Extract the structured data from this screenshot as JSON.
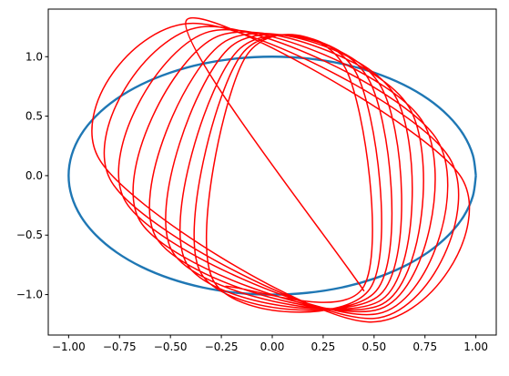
{
  "chart_data": {
    "type": "line",
    "title": "",
    "xlabel": "",
    "ylabel": "",
    "xlim": [
      -1.1,
      1.1
    ],
    "ylim": [
      -1.34,
      1.4
    ],
    "grid": false,
    "x_ticks": [
      -1.0,
      -0.75,
      -0.5,
      -0.25,
      0.0,
      0.25,
      0.5,
      0.75,
      1.0
    ],
    "x_tick_labels": [
      "−1.00",
      "−0.75",
      "−0.50",
      "−0.25",
      "0.00",
      "0.25",
      "0.50",
      "0.75",
      "1.00"
    ],
    "y_ticks": [
      -1.0,
      -0.5,
      0.0,
      0.5,
      1.0
    ],
    "y_tick_labels": [
      "−1.0",
      "−0.5",
      "0.0",
      "0.5",
      "1.0"
    ],
    "series": [
      {
        "color": "#1f77b4",
        "kind": "ellipse-band",
        "points": [
          [
            1.0,
            0.0
          ],
          [
            0.985,
            0.173
          ],
          [
            0.94,
            0.342
          ],
          [
            0.866,
            0.5
          ],
          [
            0.766,
            0.643
          ],
          [
            0.643,
            0.766
          ],
          [
            0.5,
            0.866
          ],
          [
            0.342,
            0.94
          ],
          [
            0.173,
            0.985
          ],
          [
            0.0,
            1.0
          ],
          [
            -0.173,
            0.985
          ],
          [
            -0.342,
            0.94
          ],
          [
            -0.5,
            0.866
          ],
          [
            -0.643,
            0.766
          ],
          [
            -0.766,
            0.643
          ],
          [
            -0.866,
            0.5
          ],
          [
            -0.94,
            0.342
          ],
          [
            -0.985,
            0.173
          ],
          [
            -1.0,
            0.0
          ],
          [
            -0.985,
            -0.173
          ],
          [
            -0.94,
            -0.342
          ],
          [
            -0.866,
            -0.5
          ],
          [
            -0.766,
            -0.643
          ],
          [
            -0.643,
            -0.766
          ],
          [
            -0.5,
            -0.866
          ],
          [
            -0.342,
            -0.94
          ],
          [
            -0.173,
            -0.985
          ],
          [
            0.0,
            -1.0
          ],
          [
            0.173,
            -0.985
          ],
          [
            0.342,
            -0.94
          ],
          [
            0.5,
            -0.866
          ],
          [
            0.643,
            -0.766
          ],
          [
            0.766,
            -0.643
          ],
          [
            0.866,
            -0.5
          ],
          [
            0.94,
            -0.342
          ],
          [
            0.985,
            -0.173
          ],
          [
            1.0,
            0.0
          ]
        ]
      },
      {
        "color": "#ff0000",
        "kind": "precessing-loops",
        "points": [
          [
            0.451,
            -0.971
          ],
          [
            -0.42,
            1.31
          ],
          [
            0.93,
            -0.02
          ],
          [
            0.47,
            -1.23
          ],
          [
            -0.85,
            0.14
          ],
          [
            -0.39,
            1.28
          ],
          [
            0.87,
            0.15
          ],
          [
            0.5,
            -1.2
          ],
          [
            -0.79,
            -0.05
          ],
          [
            -0.35,
            1.25
          ],
          [
            0.81,
            0.3
          ],
          [
            0.52,
            -1.16
          ],
          [
            -0.72,
            -0.22
          ],
          [
            -0.31,
            1.21
          ],
          [
            0.74,
            0.45
          ],
          [
            0.53,
            -1.12
          ],
          [
            -0.65,
            -0.38
          ],
          [
            -0.27,
            1.17
          ],
          [
            0.67,
            0.58
          ],
          [
            0.54,
            -1.08
          ],
          [
            -0.57,
            -0.52
          ],
          [
            -0.23,
            1.13
          ],
          [
            0.6,
            0.68
          ],
          [
            0.54,
            -1.04
          ],
          [
            -0.49,
            -0.64
          ],
          [
            -0.2,
            1.09
          ],
          [
            0.53,
            0.76
          ],
          [
            0.53,
            -1.0
          ],
          [
            -0.42,
            -0.74
          ],
          [
            -0.17,
            1.05
          ],
          [
            0.47,
            0.82
          ],
          [
            0.51,
            -0.97
          ],
          [
            -0.35,
            -0.82
          ],
          [
            -0.15,
            1.02
          ],
          [
            0.41,
            0.87
          ],
          [
            0.48,
            -0.95
          ],
          [
            -0.29,
            -0.88
          ],
          [
            -0.13,
            1.0
          ],
          [
            0.36,
            0.9
          ],
          [
            0.45,
            -0.93
          ],
          [
            -0.23,
            -0.93
          ]
        ]
      }
    ]
  }
}
